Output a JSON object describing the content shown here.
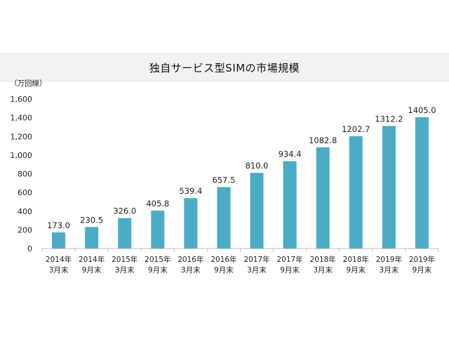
{
  "chart_data": {
    "type": "bar",
    "title": "独自サービス型SIMの市場規模",
    "unit_label": "（万回線）",
    "xlabel": "",
    "ylabel": "万回線",
    "ylim": [
      0,
      1600
    ],
    "yticks": [
      0,
      200,
      400,
      600,
      800,
      1000,
      1200,
      1400,
      1600
    ],
    "ytick_labels": [
      "0",
      "200",
      "400",
      "600",
      "800",
      "1,000",
      "1,200",
      "1,400",
      "1,600"
    ],
    "categories": [
      {
        "line1": "2014年",
        "line2": "3月末"
      },
      {
        "line1": "2014年",
        "line2": "9月末"
      },
      {
        "line1": "2015年",
        "line2": "3月末"
      },
      {
        "line1": "2015年",
        "line2": "9月末"
      },
      {
        "line1": "2016年",
        "line2": "3月末"
      },
      {
        "line1": "2016年",
        "line2": "9月末"
      },
      {
        "line1": "2017年",
        "line2": "3月末"
      },
      {
        "line1": "2017年",
        "line2": "9月末"
      },
      {
        "line1": "2018年",
        "line2": "3月末"
      },
      {
        "line1": "2018年",
        "line2": "9月末"
      },
      {
        "line1": "2019年",
        "line2": "3月末"
      },
      {
        "line1": "2019年",
        "line2": "9月末"
      }
    ],
    "values": [
      173.0,
      230.5,
      326.0,
      405.8,
      539.4,
      657.5,
      810.0,
      934.4,
      1082.8,
      1202.7,
      1312.2,
      1405.0
    ],
    "value_labels": [
      "173.0",
      "230.5",
      "326.0",
      "405.8",
      "539.4",
      "657.5",
      "810.0",
      "934.4",
      "1082.8",
      "1202.7",
      "1312.2",
      "1405.0"
    ],
    "bar_color": "#4bacc6",
    "grid": false
  }
}
